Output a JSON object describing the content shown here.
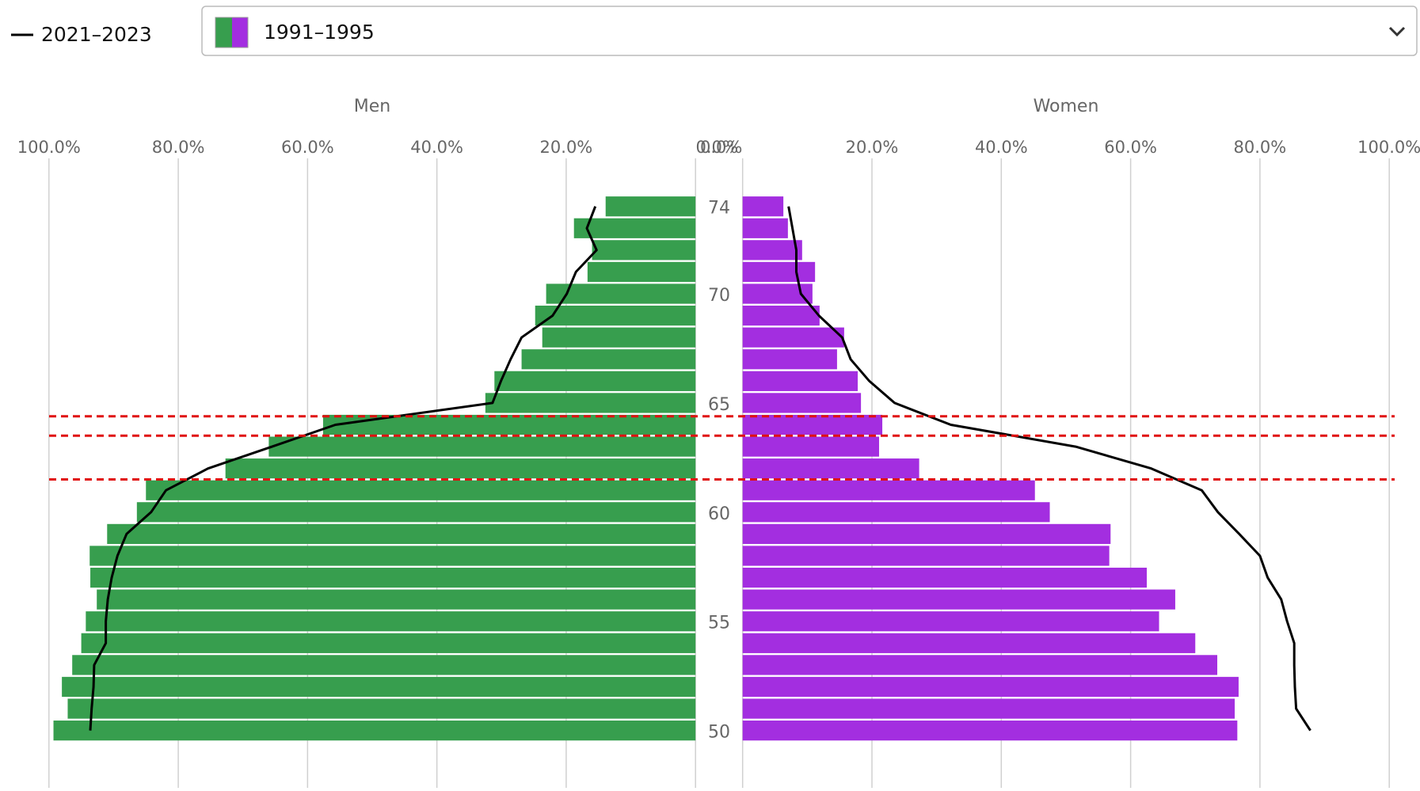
{
  "chart_data": {
    "type": "pyramid",
    "left_title": "Men",
    "right_title": "Women",
    "categories": [
      74,
      null,
      null,
      null,
      70,
      null,
      null,
      null,
      null,
      65,
      null,
      null,
      null,
      null,
      60,
      null,
      null,
      null,
      null,
      55,
      null,
      null,
      null,
      null,
      50
    ],
    "xlim": [
      0,
      100
    ],
    "xticks": [
      {
        "value": 0,
        "label": "0.0%"
      },
      {
        "value": 20,
        "label": "20.0%"
      },
      {
        "value": 40,
        "label": "40.0%"
      },
      {
        "value": 60,
        "label": "60.0%"
      },
      {
        "value": 80,
        "label": "80.0%"
      },
      {
        "value": 100,
        "label": "100.0%"
      }
    ],
    "grid": true,
    "series": [
      {
        "name": "1991–1995",
        "type": "bar",
        "color_left": "#379e4e",
        "color_right": "#a32ee0",
        "left": [
          13.9,
          18.8,
          16.0,
          16.7,
          23.1,
          24.8,
          23.7,
          26.9,
          31.1,
          32.5,
          57.6,
          66.0,
          72.7,
          85.0,
          86.4,
          91.0,
          93.7,
          93.6,
          92.6,
          94.3,
          95.0,
          96.4,
          98.0,
          97.1,
          99.3
        ],
        "right": [
          6.3,
          7.0,
          9.2,
          11.2,
          10.8,
          11.9,
          15.7,
          14.6,
          17.8,
          18.3,
          21.6,
          21.1,
          27.3,
          45.2,
          47.5,
          56.9,
          56.7,
          62.5,
          66.9,
          64.4,
          70.0,
          73.4,
          76.7,
          76.1,
          76.5
        ]
      },
      {
        "name": "2021–2023",
        "type": "line",
        "color": "#000000",
        "left": [
          15.5,
          16.8,
          15.3,
          18.5,
          19.9,
          22.1,
          26.9,
          28.6,
          30.1,
          31.4,
          55.7,
          65.5,
          75.4,
          81.9,
          84.2,
          88.0,
          89.4,
          90.3,
          90.9,
          91.2,
          91.2,
          93.0,
          93.1,
          93.4,
          93.6
        ],
        "right": [
          7.1,
          7.7,
          8.3,
          8.3,
          9.0,
          11.8,
          15.4,
          16.7,
          19.6,
          23.5,
          32.2,
          51.5,
          63.2,
          71.0,
          73.5,
          76.8,
          80.0,
          81.2,
          83.3,
          84.2,
          85.3,
          85.3,
          85.4,
          85.6,
          87.8
        ]
      }
    ]
  }
}
